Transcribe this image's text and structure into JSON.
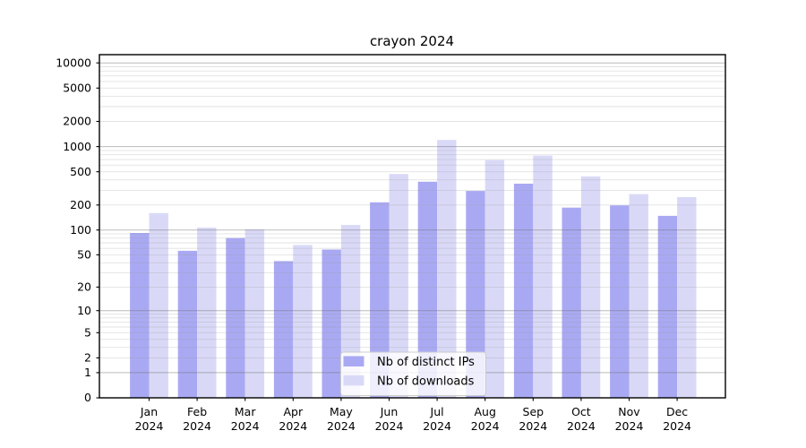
{
  "chart_data": {
    "type": "bar",
    "title": "crayon 2024",
    "categories": [
      "Jan",
      "Feb",
      "Mar",
      "Apr",
      "May",
      "Jun",
      "Jul",
      "Aug",
      "Sep",
      "Oct",
      "Nov",
      "Dec"
    ],
    "category_year": "2024",
    "series": [
      {
        "name": "Nb of distinct IPs",
        "color": "#a9a9f3",
        "values": [
          92,
          56,
          80,
          42,
          58,
          215,
          380,
          295,
          360,
          186,
          198,
          148
        ]
      },
      {
        "name": "Nb of downloads",
        "color": "#d9d9f7",
        "values": [
          160,
          107,
          102,
          66,
          115,
          470,
          1200,
          690,
          780,
          440,
          270,
          249
        ]
      }
    ],
    "yscale": "log1p",
    "ylim": [
      0,
      12500
    ],
    "ytick_values": [
      0,
      1,
      2,
      5,
      10,
      20,
      50,
      100,
      200,
      500,
      1000,
      2000,
      5000,
      10000
    ],
    "ytick_labels": [
      "0",
      "1",
      "2",
      "5",
      "10",
      "20",
      "50",
      "100",
      "200",
      "500",
      "1000",
      "2000",
      "5000",
      "10000"
    ],
    "grid": "major-and-minor",
    "legend": {
      "position": "lower-center",
      "labels": [
        "Nb of distinct IPs",
        "Nb of downloads"
      ]
    },
    "colors": {
      "bar_ips": "#a9a9f3",
      "bar_downloads": "#d9d9f7",
      "grid_major": "#b3b3b3",
      "grid_minor": "#e4e4e4",
      "axis_frame": "#000000",
      "legend_background": "#ffffff",
      "legend_border": "#cccccc",
      "text": "#000000"
    }
  }
}
